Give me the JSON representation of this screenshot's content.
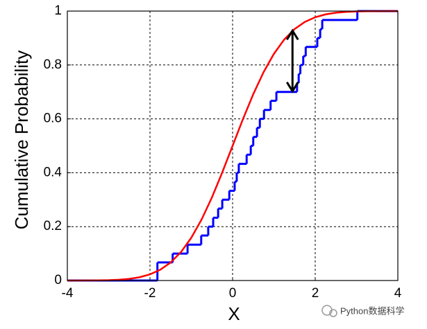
{
  "chart_data": {
    "type": "line",
    "xlabel": "X",
    "ylabel": "Cumulative Probability",
    "xlim": [
      -4,
      4
    ],
    "ylim": [
      0,
      1
    ],
    "xticks": [
      -4,
      -2,
      0,
      2,
      4
    ],
    "yticks": [
      0,
      0.2,
      0.4,
      0.6,
      0.8,
      1
    ],
    "grid": true,
    "series": [
      {
        "color": "#0000ff",
        "step": true,
        "x": [
          -4,
          -1.82,
          -1.45,
          -1.09,
          -0.76,
          -0.59,
          -0.47,
          -0.35,
          -0.25,
          -0.08,
          0.05,
          0.1,
          0.15,
          0.34,
          0.44,
          0.5,
          0.59,
          0.66,
          0.76,
          0.92,
          1.06,
          1.56,
          1.6,
          1.64,
          1.71,
          1.77,
          2.05,
          2.12,
          2.17,
          3.02
        ],
        "values": [
          0,
          0.067,
          0.1,
          0.133,
          0.167,
          0.2,
          0.233,
          0.267,
          0.3,
          0.333,
          0.367,
          0.4,
          0.433,
          0.467,
          0.5,
          0.533,
          0.567,
          0.6,
          0.633,
          0.667,
          0.7,
          0.733,
          0.767,
          0.8,
          0.833,
          0.867,
          0.9,
          0.933,
          0.967,
          1
        ]
      },
      {
        "color": "#ff0000",
        "step": false,
        "x": [
          -4,
          -3.75,
          -3.5,
          -3.25,
          -3,
          -2.75,
          -2.5,
          -2.25,
          -2,
          -1.75,
          -1.5,
          -1.25,
          -1,
          -0.75,
          -0.5,
          -0.25,
          0,
          0.25,
          0.5,
          0.75,
          1,
          1.25,
          1.5,
          1.75,
          2,
          2.25,
          2.5,
          2.75,
          3,
          3.25,
          3.5,
          3.75,
          4
        ],
        "values": [
          0,
          0.0001,
          0.0002,
          0.0006,
          0.0013,
          0.003,
          0.0062,
          0.0122,
          0.0228,
          0.0401,
          0.0668,
          0.1056,
          0.1587,
          0.2266,
          0.3085,
          0.4013,
          0.5,
          0.5987,
          0.6915,
          0.7734,
          0.8413,
          0.8944,
          0.9332,
          0.9599,
          0.9772,
          0.9878,
          0.9938,
          0.997,
          0.9987,
          0.9994,
          0.9998,
          0.9999,
          1
        ]
      }
    ],
    "annotations": [
      {
        "x": 1.45,
        "y_start": 0.7,
        "y_end": 0.93
      }
    ],
    "watermark": "Python数据科学"
  }
}
